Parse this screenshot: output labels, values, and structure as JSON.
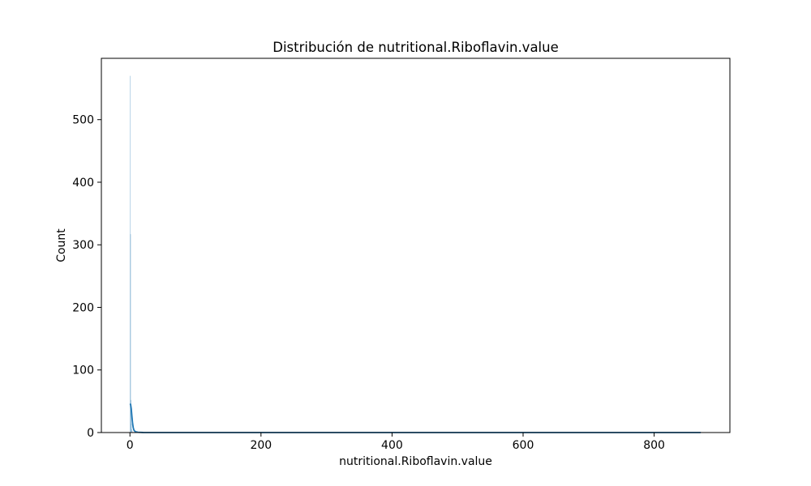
{
  "chart_data": {
    "type": "bar",
    "title": "Distribución de nutritional.Riboflavin.value",
    "xlabel": "nutritional.Riboflavin.value",
    "ylabel": "Count",
    "xlim": [
      -43.6,
      915.6
    ],
    "ylim": [
      0,
      598
    ],
    "xticks": [
      0,
      200,
      400,
      600,
      800
    ],
    "yticks": [
      0,
      100,
      200,
      300,
      400,
      500
    ],
    "grid": false,
    "bar_color": "#1f77b4",
    "kde_color": "#1f77b4",
    "histogram": {
      "bin_width": 0.62,
      "bins": [
        {
          "x": 0.0,
          "count": 570
        },
        {
          "x": 0.62,
          "count": 317
        },
        {
          "x": 1.24,
          "count": 52
        },
        {
          "x": 1.86,
          "count": 14
        },
        {
          "x": 2.48,
          "count": 5
        },
        {
          "x": 3.1,
          "count": 2
        },
        {
          "x": 871.0,
          "count": 1
        }
      ]
    },
    "kde": [
      {
        "x": 0,
        "y": 46
      },
      {
        "x": 1,
        "y": 45
      },
      {
        "x": 2,
        "y": 38
      },
      {
        "x": 3,
        "y": 26
      },
      {
        "x": 4,
        "y": 15
      },
      {
        "x": 5,
        "y": 8
      },
      {
        "x": 6,
        "y": 4
      },
      {
        "x": 8,
        "y": 1.5
      },
      {
        "x": 12,
        "y": 0.5
      },
      {
        "x": 20,
        "y": 0.1
      },
      {
        "x": 100,
        "y": 0
      },
      {
        "x": 871,
        "y": 0
      }
    ]
  }
}
